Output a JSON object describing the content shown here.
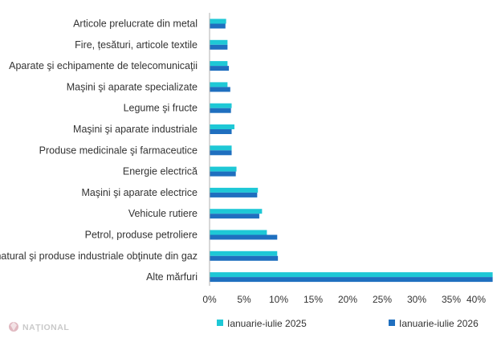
{
  "chart_data": {
    "type": "bar",
    "orientation": "horizontal",
    "categories": [
      "Articole prelucrate din metal",
      "Fire, țesături, articole textile",
      "Aparate şi echipamente de telecomunicaţii",
      "Maşini şi aparate specializate",
      "Legume şi fructe",
      "Maşini şi aparate industriale",
      "Produse medicinale şi farmaceutice",
      "Energie electrică",
      "Maşini şi aparate electrice",
      "Vehicule rutiere",
      "Petrol, produse petroliere",
      "Gaz natural şi produse industriale obţinute din gaz",
      "Alte mărfuri"
    ],
    "series": [
      {
        "name": "Ianuarie-iulie 2025",
        "color": "#1ec8d6",
        "values": [
          2.4,
          2.6,
          2.6,
          2.6,
          3.2,
          3.6,
          3.2,
          3.9,
          7.0,
          7.6,
          8.3,
          9.8,
          41.0
        ]
      },
      {
        "name": "Ianuarie-iulie 2026",
        "color": "#1f6fbf",
        "values": [
          2.3,
          2.6,
          2.8,
          3.0,
          3.1,
          3.2,
          3.2,
          3.8,
          6.9,
          7.2,
          9.8,
          9.9,
          41.0
        ]
      }
    ],
    "xticks": [
      "0%",
      "5%",
      "10%",
      "15%",
      "20%",
      "25%",
      "30%",
      "35%",
      "40%"
    ],
    "xlim": [
      0,
      40
    ],
    "grid": false,
    "legend_position": "bottom"
  },
  "logo": {
    "text": "NAŢIONAL"
  }
}
